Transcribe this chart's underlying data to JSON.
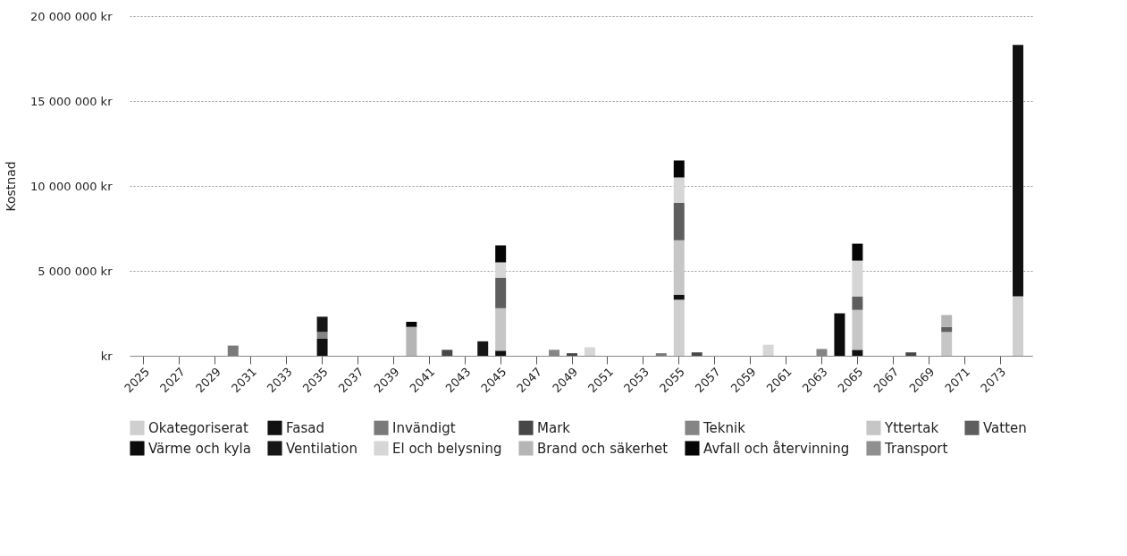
{
  "chart_data": {
    "type": "bar",
    "stacked": true,
    "ylabel": "Kostnad",
    "categories": [
      "2025",
      null,
      "2027",
      null,
      "2029",
      null,
      "2031",
      null,
      "2033",
      null,
      "2035",
      null,
      "2037",
      null,
      "2039",
      null,
      "2041",
      null,
      "2043",
      null,
      "2045",
      null,
      "2047",
      null,
      "2049",
      null,
      "2051",
      null,
      "2053",
      null,
      "2055",
      null,
      "2057",
      null,
      "2059",
      null,
      "2061",
      null,
      "2063",
      null,
      "2065",
      null,
      "2067",
      null,
      "2069",
      null,
      "2071",
      null,
      "2073",
      null
    ],
    "series": [
      {
        "name": "Okategoriserat",
        "color": "#cfcfcf",
        "values": [
          null,
          null,
          null,
          null,
          null,
          null,
          null,
          null,
          null,
          null,
          null,
          null,
          null,
          null,
          null,
          null,
          null,
          null,
          null,
          null,
          null,
          null,
          null,
          null,
          null,
          null,
          null,
          null,
          null,
          null,
          3300000,
          null,
          null,
          null,
          null,
          null,
          null,
          null,
          null,
          null,
          null,
          null,
          null,
          null,
          null,
          null,
          null,
          null,
          null,
          3500000
        ]
      },
      {
        "name": "Fasad",
        "color": "#111111",
        "values": [
          null,
          null,
          null,
          null,
          null,
          null,
          null,
          null,
          null,
          null,
          1000000,
          null,
          null,
          null,
          null,
          null,
          null,
          null,
          null,
          null,
          300000,
          null,
          null,
          null,
          null,
          null,
          null,
          null,
          null,
          null,
          300000,
          null,
          null,
          null,
          null,
          null,
          null,
          null,
          null,
          null,
          350000,
          null,
          null,
          null,
          null,
          null,
          null,
          null,
          null,
          14800000
        ]
      },
      {
        "name": "Invändigt",
        "color": "#7a7a7a",
        "values": [
          null,
          null,
          null,
          null,
          null,
          600000,
          null,
          null,
          null,
          null,
          null,
          null,
          null,
          null,
          null,
          null,
          null,
          null,
          null,
          null,
          null,
          null,
          null,
          null,
          null,
          null,
          null,
          null,
          null,
          150000,
          null,
          null,
          null,
          null,
          null,
          null,
          null,
          null,
          null,
          null,
          null,
          null,
          null,
          null,
          null,
          null,
          null,
          null,
          null,
          null
        ]
      },
      {
        "name": "Mark",
        "color": "#474747",
        "values": [
          null,
          null,
          null,
          null,
          null,
          null,
          null,
          null,
          null,
          null,
          null,
          null,
          null,
          null,
          null,
          null,
          null,
          350000,
          null,
          null,
          null,
          null,
          null,
          null,
          150000,
          null,
          null,
          null,
          null,
          null,
          null,
          200000,
          null,
          null,
          null,
          null,
          null,
          null,
          null,
          null,
          null,
          null,
          null,
          200000,
          null,
          null,
          null,
          null,
          null,
          null
        ]
      },
      {
        "name": "Teknik",
        "color": "#858585",
        "values": [
          null,
          null,
          null,
          null,
          null,
          null,
          null,
          null,
          null,
          null,
          400000,
          null,
          null,
          null,
          null,
          null,
          null,
          null,
          null,
          null,
          null,
          null,
          null,
          350000,
          null,
          null,
          null,
          null,
          null,
          null,
          null,
          null,
          null,
          null,
          null,
          null,
          null,
          null,
          400000,
          null,
          null,
          null,
          null,
          null,
          null,
          null,
          null,
          null,
          null,
          null
        ]
      },
      {
        "name": "Yttertak",
        "color": "#c6c6c6",
        "values": [
          null,
          null,
          null,
          null,
          null,
          null,
          null,
          null,
          null,
          null,
          null,
          null,
          null,
          null,
          null,
          null,
          null,
          null,
          null,
          null,
          2500000,
          null,
          null,
          null,
          null,
          null,
          null,
          null,
          null,
          null,
          3200000,
          null,
          null,
          null,
          null,
          null,
          null,
          null,
          null,
          null,
          2350000,
          null,
          null,
          null,
          null,
          1400000,
          null,
          null,
          null,
          null
        ]
      },
      {
        "name": "Vatten",
        "color": "#5e5e5e",
        "values": [
          null,
          null,
          null,
          null,
          null,
          null,
          null,
          null,
          null,
          null,
          null,
          null,
          null,
          null,
          null,
          null,
          null,
          null,
          null,
          null,
          1800000,
          null,
          null,
          null,
          null,
          null,
          null,
          null,
          null,
          null,
          2200000,
          null,
          null,
          null,
          null,
          null,
          null,
          null,
          null,
          null,
          800000,
          null,
          null,
          null,
          null,
          300000,
          null,
          null,
          null,
          null
        ]
      },
      {
        "name": "Värme och kyla",
        "color": "#0c0c0c",
        "values": [
          null,
          null,
          null,
          null,
          null,
          null,
          null,
          null,
          null,
          null,
          null,
          null,
          null,
          null,
          null,
          null,
          null,
          null,
          null,
          null,
          null,
          null,
          null,
          null,
          null,
          null,
          null,
          null,
          null,
          null,
          null,
          null,
          null,
          null,
          null,
          null,
          null,
          null,
          null,
          2500000,
          null,
          null,
          null,
          null,
          null,
          null,
          null,
          null,
          null,
          null
        ]
      },
      {
        "name": "Ventilation",
        "color": "#161616",
        "values": [
          null,
          null,
          null,
          null,
          null,
          null,
          null,
          null,
          null,
          null,
          900000,
          null,
          null,
          null,
          null,
          null,
          null,
          null,
          null,
          850000,
          null,
          null,
          null,
          null,
          null,
          null,
          null,
          null,
          null,
          null,
          null,
          null,
          null,
          null,
          null,
          null,
          null,
          null,
          null,
          null,
          null,
          null,
          null,
          null,
          null,
          null,
          null,
          null,
          null,
          null
        ]
      },
      {
        "name": "El och belysning",
        "color": "#d6d6d6",
        "values": [
          null,
          null,
          null,
          null,
          null,
          null,
          null,
          null,
          null,
          null,
          null,
          null,
          null,
          null,
          null,
          null,
          null,
          null,
          null,
          null,
          900000,
          null,
          null,
          null,
          null,
          500000,
          null,
          null,
          null,
          null,
          1500000,
          null,
          null,
          null,
          null,
          650000,
          null,
          null,
          null,
          null,
          2100000,
          null,
          null,
          null,
          null,
          null,
          null,
          null,
          null,
          null
        ]
      },
      {
        "name": "Brand och säkerhet",
        "color": "#b5b5b5",
        "values": [
          null,
          null,
          null,
          null,
          null,
          null,
          null,
          null,
          null,
          null,
          null,
          null,
          null,
          null,
          null,
          1700000,
          null,
          null,
          null,
          null,
          null,
          null,
          null,
          null,
          null,
          null,
          null,
          null,
          null,
          null,
          null,
          null,
          null,
          null,
          null,
          null,
          null,
          null,
          null,
          null,
          null,
          null,
          null,
          null,
          null,
          700000,
          null,
          null,
          null,
          null
        ]
      },
      {
        "name": "Avfall och återvinning",
        "color": "#050505",
        "values": [
          null,
          null,
          null,
          null,
          null,
          null,
          null,
          null,
          null,
          null,
          null,
          null,
          null,
          null,
          null,
          300000,
          null,
          null,
          null,
          null,
          1000000,
          null,
          null,
          null,
          null,
          null,
          null,
          null,
          null,
          null,
          1000000,
          null,
          null,
          null,
          null,
          null,
          null,
          null,
          null,
          null,
          1000000,
          null,
          null,
          null,
          null,
          null,
          null,
          null,
          null,
          null
        ]
      },
      {
        "name": "Transport",
        "color": "#8f8f8f",
        "values": [
          null,
          null,
          null,
          null,
          null,
          null,
          null,
          null,
          null,
          null,
          null,
          null,
          null,
          null,
          null,
          null,
          null,
          null,
          null,
          null,
          null,
          null,
          null,
          null,
          null,
          null,
          null,
          null,
          null,
          null,
          null,
          null,
          null,
          null,
          null,
          null,
          null,
          null,
          null,
          null,
          null,
          null,
          null,
          null,
          null,
          null,
          null,
          null,
          null,
          null
        ]
      }
    ],
    "ylim": [
      0,
      20000000
    ],
    "yticks": [
      {
        "value": 0,
        "label": "kr"
      },
      {
        "value": 5000000,
        "label": "5 000 000 kr"
      },
      {
        "value": 10000000,
        "label": "10 000 000 kr"
      },
      {
        "value": 15000000,
        "label": "15 000 000 kr"
      },
      {
        "value": 20000000,
        "label": "20 000 000 kr"
      }
    ],
    "grid": "y",
    "legend": "bottom"
  }
}
